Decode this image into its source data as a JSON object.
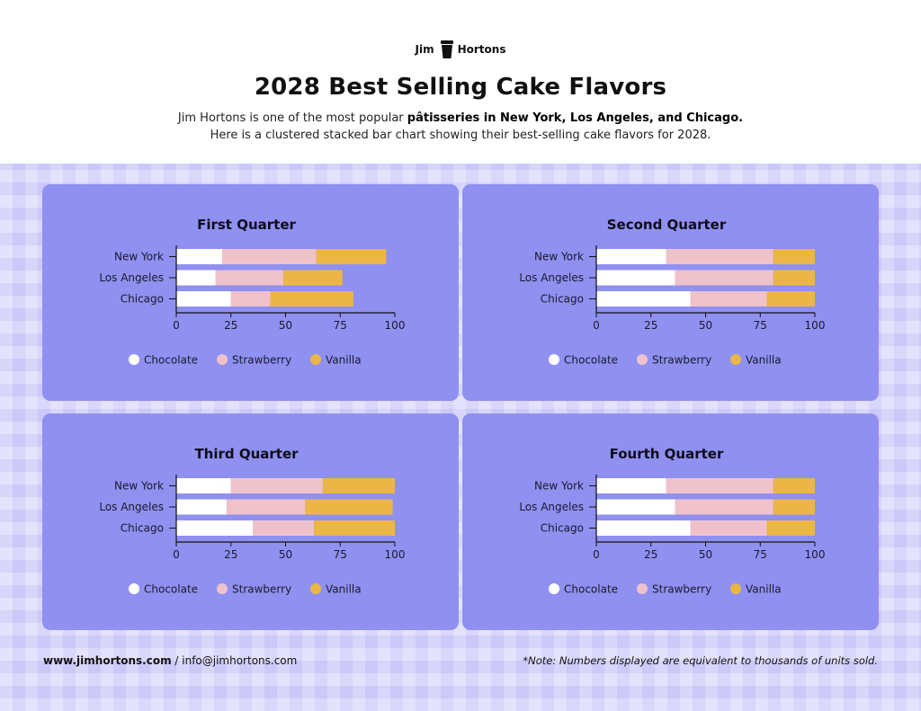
{
  "brand": {
    "name": "Jim Hortons",
    "logo_icon": "cup-icon"
  },
  "title": "2028 Best Selling Cake Flavors",
  "subtitle": {
    "line1_pre": "Jim Hortons is one of the most popular ",
    "line1_bold": "pâtisseries in New York, Los Angeles, and Chicago.",
    "line2": "Here is a clustered stacked bar chart showing their best-selling cake flavors for 2028."
  },
  "footer": {
    "website": "www.jimhortons.com",
    "separator": " / ",
    "email": "info@jimhortons.com",
    "note": "*Note: Numbers displayed are equivalent to thousands of units sold."
  },
  "colors": {
    "panel": "#8f90f0",
    "band": "#d7d4fb",
    "Chocolate": "#ffffff",
    "Strawberry": "#efc2cb",
    "Vanilla": "#ebb646"
  },
  "chart_data": [
    {
      "type": "bar",
      "orientation": "horizontal",
      "stacked": true,
      "title": "First Quarter",
      "categories": [
        "New York",
        "Los Angeles",
        "Chicago"
      ],
      "series": [
        {
          "name": "Chocolate",
          "values": [
            21,
            18,
            25
          ]
        },
        {
          "name": "Strawberry",
          "values": [
            43,
            31,
            18
          ]
        },
        {
          "name": "Vanilla",
          "values": [
            32,
            27,
            38
          ]
        }
      ],
      "xlim": [
        0,
        100
      ],
      "xticks": [
        "0",
        "25",
        "50",
        "75",
        "100"
      ],
      "legend": "bottom"
    },
    {
      "type": "bar",
      "orientation": "horizontal",
      "stacked": true,
      "title": "Second Quarter",
      "categories": [
        "New York",
        "Los Angeles",
        "Chicago"
      ],
      "series": [
        {
          "name": "Chocolate",
          "values": [
            32,
            36,
            43
          ]
        },
        {
          "name": "Strawberry",
          "values": [
            49,
            45,
            35
          ]
        },
        {
          "name": "Vanilla",
          "values": [
            19,
            19,
            22
          ]
        }
      ],
      "xlim": [
        0,
        100
      ],
      "xticks": [
        "0",
        "25",
        "50",
        "75",
        "100"
      ],
      "legend": "bottom"
    },
    {
      "type": "bar",
      "orientation": "horizontal",
      "stacked": true,
      "title": "Third Quarter",
      "categories": [
        "New York",
        "Los Angeles",
        "Chicago"
      ],
      "series": [
        {
          "name": "Chocolate",
          "values": [
            25,
            23,
            35
          ]
        },
        {
          "name": "Strawberry",
          "values": [
            42,
            36,
            28
          ]
        },
        {
          "name": "Vanilla",
          "values": [
            33,
            40,
            37
          ]
        }
      ],
      "xlim": [
        0,
        100
      ],
      "xticks": [
        "0",
        "25",
        "50",
        "75",
        "100"
      ],
      "legend": "bottom"
    },
    {
      "type": "bar",
      "orientation": "horizontal",
      "stacked": true,
      "title": "Fourth Quarter",
      "categories": [
        "New York",
        "Los Angeles",
        "Chicago"
      ],
      "series": [
        {
          "name": "Chocolate",
          "values": [
            32,
            36,
            43
          ]
        },
        {
          "name": "Strawberry",
          "values": [
            49,
            45,
            35
          ]
        },
        {
          "name": "Vanilla",
          "values": [
            19,
            19,
            22
          ]
        }
      ],
      "xlim": [
        0,
        100
      ],
      "xticks": [
        "0",
        "25",
        "50",
        "75",
        "100"
      ],
      "legend": "bottom"
    }
  ]
}
